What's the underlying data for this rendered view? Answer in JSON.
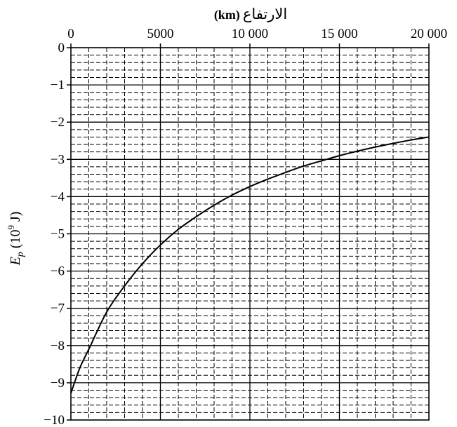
{
  "chart_data": {
    "type": "line",
    "xlabel": "الارتفاع",
    "xlabel_unit": "(km)",
    "ylabel": "E",
    "ylabel_sub": "p",
    "ylabel_unit_pre": " (10",
    "ylabel_unit_exp": "9",
    "ylabel_unit_post": " J)",
    "xlim": [
      0,
      20000
    ],
    "ylim": [
      -10,
      0
    ],
    "x_ticks": [
      0,
      5000,
      10000,
      15000,
      20000
    ],
    "x_tick_labels": [
      "0",
      "5000",
      "10 000",
      "15 000",
      "20 000"
    ],
    "y_ticks": [
      0,
      -1,
      -2,
      -3,
      -4,
      -5,
      -6,
      -7,
      -8,
      -9,
      -10
    ],
    "y_tick_labels": [
      "0",
      "−1",
      "−2",
      "−3",
      "−4",
      "−5",
      "−6",
      "−7",
      "−8",
      "−9",
      "−10"
    ],
    "x_axis_position": "top",
    "grid": true,
    "series": [
      {
        "x": [
          0,
          500,
          1000,
          2000,
          3000,
          4000,
          5000,
          6000,
          7000,
          8000,
          9000,
          10000,
          11000,
          12000,
          13000,
          14000,
          15000,
          16000,
          17000,
          18000,
          19000,
          20000
        ],
        "y": [
          -9.28,
          -8.6,
          -8.1,
          -7.1,
          -6.4,
          -5.8,
          -5.3,
          -4.88,
          -4.54,
          -4.23,
          -3.96,
          -3.73,
          -3.53,
          -3.35,
          -3.18,
          -3.04,
          -2.9,
          -2.78,
          -2.67,
          -2.57,
          -2.48,
          -2.4
        ]
      }
    ]
  }
}
